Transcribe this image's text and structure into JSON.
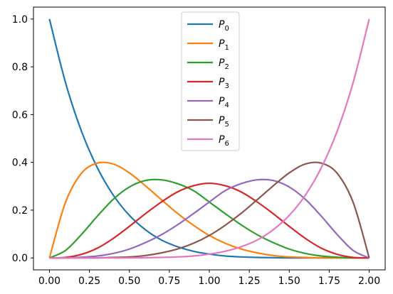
{
  "chart_data": {
    "type": "line",
    "title": "",
    "xlabel": "",
    "ylabel": "",
    "xlim": [
      -0.1,
      2.1
    ],
    "ylim": [
      -0.05,
      1.05
    ],
    "xticks": [
      0.0,
      0.25,
      0.5,
      0.75,
      1.0,
      1.25,
      1.5,
      1.75,
      2.0
    ],
    "xtick_labels": [
      "0.00",
      "0.25",
      "0.50",
      "0.75",
      "1.00",
      "1.25",
      "1.50",
      "1.75",
      "2.00"
    ],
    "yticks": [
      0.0,
      0.2,
      0.4,
      0.6,
      0.8,
      1.0
    ],
    "ytick_labels": [
      "0.0",
      "0.2",
      "0.4",
      "0.6",
      "0.8",
      "1.0"
    ],
    "grid": false,
    "legend_position": "top-center",
    "x": [
      0.0,
      0.1,
      0.2,
      0.3,
      0.4,
      0.5,
      0.6,
      0.7,
      0.8,
      0.9,
      1.0,
      1.1,
      1.2,
      1.3,
      1.4,
      1.5,
      1.6,
      1.7,
      1.8,
      1.9,
      2.0
    ],
    "series": [
      {
        "name": "P",
        "subscript": "0",
        "color": "#1f77b4",
        "values": [
          1.0,
          0.735,
          0.531,
          0.377,
          0.262,
          0.178,
          0.118,
          0.075,
          0.047,
          0.028,
          0.016,
          0.008,
          0.004,
          0.002,
          0.001,
          0.0,
          0.0,
          0.0,
          0.0,
          0.0,
          0.0
        ]
      },
      {
        "name": "P",
        "subscript": "1",
        "color": "#ff7f0e",
        "values": [
          0.0,
          0.232,
          0.354,
          0.397,
          0.393,
          0.356,
          0.302,
          0.244,
          0.187,
          0.137,
          0.094,
          0.061,
          0.037,
          0.021,
          0.01,
          0.004,
          0.002,
          0.0,
          0.0,
          0.0,
          0.0
        ]
      },
      {
        "name": "P",
        "subscript": "2",
        "color": "#2ca02c",
        "values": [
          0.0,
          0.031,
          0.098,
          0.175,
          0.246,
          0.297,
          0.324,
          0.327,
          0.311,
          0.282,
          0.234,
          0.185,
          0.138,
          0.097,
          0.064,
          0.037,
          0.019,
          0.008,
          0.003,
          0.0,
          0.0
        ]
      },
      {
        "name": "P",
        "subscript": "3",
        "color": "#d62728",
        "values": [
          0.0,
          0.002,
          0.015,
          0.041,
          0.082,
          0.132,
          0.185,
          0.234,
          0.276,
          0.302,
          0.3125,
          0.302,
          0.276,
          0.234,
          0.185,
          0.132,
          0.082,
          0.041,
          0.015,
          0.002,
          0.0
        ]
      },
      {
        "name": "P",
        "subscript": "4",
        "color": "#9467bd",
        "values": [
          0.0,
          0.0,
          0.003,
          0.008,
          0.019,
          0.037,
          0.064,
          0.097,
          0.138,
          0.185,
          0.234,
          0.282,
          0.311,
          0.327,
          0.324,
          0.297,
          0.246,
          0.175,
          0.098,
          0.031,
          0.0
        ]
      },
      {
        "name": "P",
        "subscript": "5",
        "color": "#8c564b",
        "values": [
          0.0,
          0.0,
          0.0,
          0.0,
          0.002,
          0.004,
          0.01,
          0.021,
          0.037,
          0.061,
          0.094,
          0.137,
          0.187,
          0.244,
          0.302,
          0.356,
          0.393,
          0.397,
          0.354,
          0.232,
          0.0
        ]
      },
      {
        "name": "P",
        "subscript": "6",
        "color": "#e377c2",
        "values": [
          0.0,
          0.0,
          0.0,
          0.0,
          0.0,
          0.0,
          0.001,
          0.002,
          0.004,
          0.008,
          0.016,
          0.028,
          0.047,
          0.075,
          0.118,
          0.178,
          0.262,
          0.377,
          0.531,
          0.735,
          1.0
        ]
      }
    ]
  }
}
